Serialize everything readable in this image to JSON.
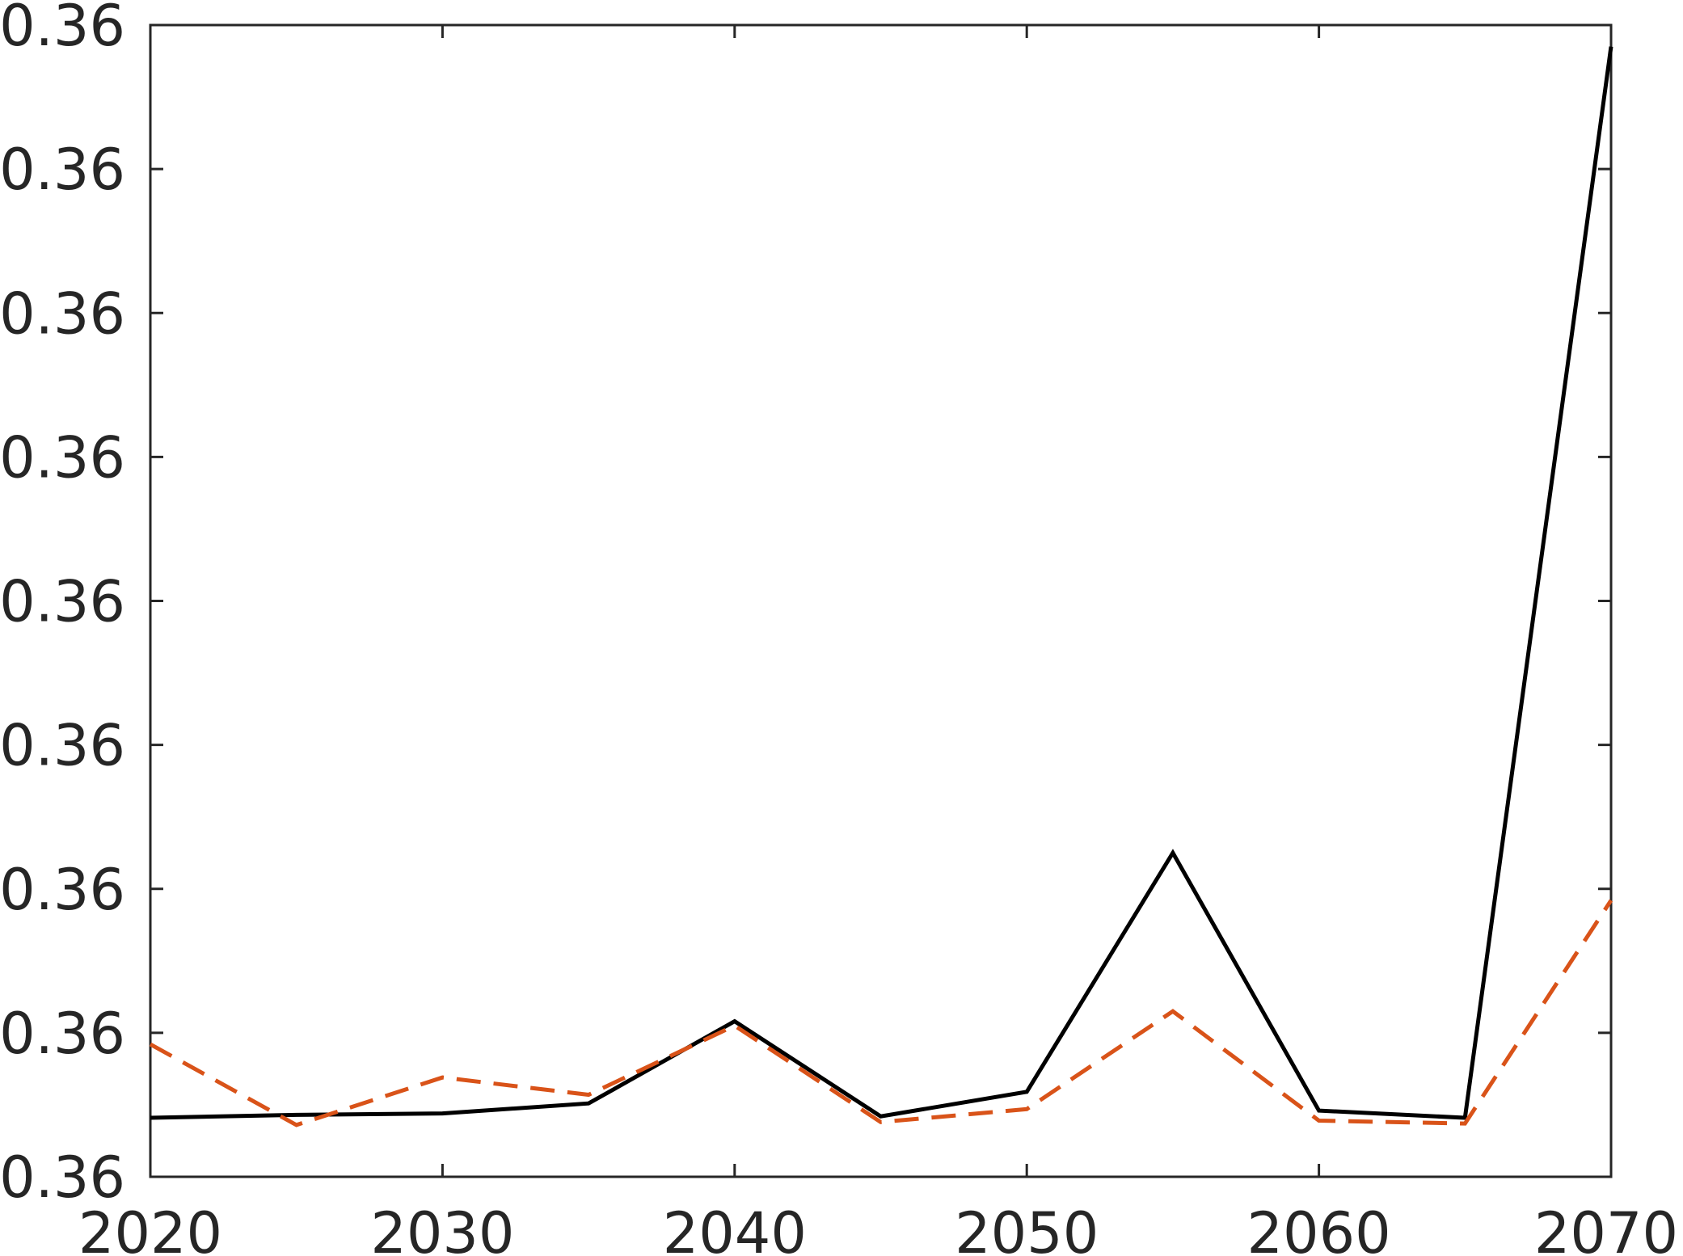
{
  "chart_data": {
    "type": "line",
    "title": "",
    "xlabel": "",
    "ylabel": "",
    "x": [
      2020,
      2025,
      2030,
      2035,
      2040,
      2045,
      2050,
      2055,
      2060,
      2065,
      2070
    ],
    "xlim": [
      2020,
      2070
    ],
    "ylim": [
      0,
      8
    ],
    "xticks": [
      2020,
      2030,
      2040,
      2050,
      2060,
      2070
    ],
    "xtick_labels": [
      "2020",
      "2030",
      "2040",
      "2050",
      "2060",
      "2070"
    ],
    "yticks": [
      0,
      1,
      2,
      3,
      4,
      5,
      6,
      7,
      8
    ],
    "ytick_labels": [
      "0.36",
      "0.36",
      "0.36",
      "0.36",
      "0.36",
      "0.36",
      "0.36",
      "0.36",
      "0.36"
    ],
    "grid": false,
    "series": [
      {
        "style": "solid",
        "color": "#000000",
        "values": [
          0.41,
          0.43,
          0.44,
          0.51,
          1.08,
          0.42,
          0.59,
          2.25,
          0.46,
          0.41,
          7.85
        ]
      },
      {
        "style": "dashed",
        "color": "#D95319",
        "values": [
          0.92,
          0.36,
          0.69,
          0.57,
          1.05,
          0.38,
          0.47,
          1.15,
          0.39,
          0.37,
          1.92
        ]
      }
    ]
  }
}
